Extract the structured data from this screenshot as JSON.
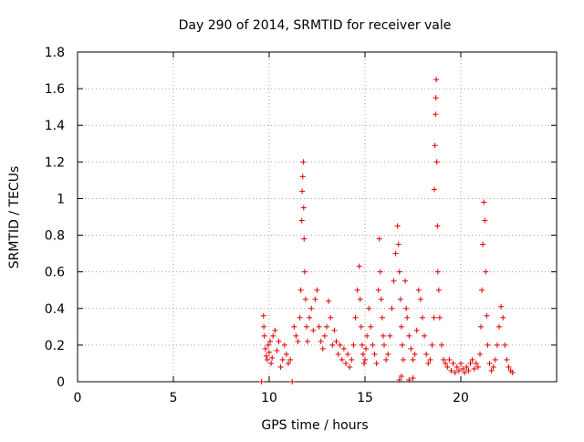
{
  "chart_data": {
    "type": "scatter",
    "title": "Day 290 of 2014, SRMTID for receiver vale",
    "xlabel": "GPS time / hours",
    "ylabel": "SRMTID / TECUs",
    "xlim": [
      0,
      25
    ],
    "ylim": [
      0,
      1.8
    ],
    "xticks": [
      0,
      5,
      10,
      15,
      20
    ],
    "xtick_labels": [
      "0",
      "5",
      "10",
      "15",
      "20"
    ],
    "yticks": [
      0,
      0.2,
      0.4,
      0.6,
      0.8,
      1,
      1.2,
      1.4,
      1.6,
      1.8
    ],
    "ytick_labels": [
      "0",
      "0.2",
      "0.4",
      "0.6",
      "0.8",
      "1",
      "1.2",
      "1.4",
      "1.6",
      "1.8"
    ],
    "grid": true,
    "marker": "+",
    "color": "#e00000",
    "series": [
      {
        "name": "SRMTID",
        "x": [
          9.6,
          11.2,
          9.7,
          9.72,
          9.75,
          9.8,
          9.85,
          9.9,
          9.95,
          10.0,
          10.05,
          10.1,
          10.15,
          10.2,
          10.3,
          10.4,
          10.5,
          10.6,
          10.7,
          10.8,
          10.9,
          11.0,
          11.1,
          11.3,
          11.4,
          11.5,
          11.6,
          11.65,
          11.7,
          11.72,
          11.75,
          11.78,
          11.8,
          11.82,
          11.85,
          11.9,
          11.95,
          12.0,
          12.1,
          12.2,
          12.3,
          12.4,
          12.5,
          12.6,
          12.7,
          12.8,
          12.9,
          13.0,
          13.1,
          13.2,
          13.3,
          13.4,
          13.5,
          13.6,
          13.7,
          13.8,
          13.9,
          14.0,
          14.1,
          14.2,
          14.3,
          14.4,
          14.5,
          14.6,
          14.7,
          14.75,
          14.8,
          14.85,
          14.9,
          14.95,
          15.0,
          15.05,
          15.1,
          15.2,
          15.3,
          15.4,
          15.5,
          15.6,
          15.7,
          15.75,
          15.8,
          15.85,
          15.9,
          15.95,
          16.0,
          16.1,
          16.2,
          16.3,
          16.4,
          16.5,
          16.6,
          16.7,
          16.75,
          16.8,
          16.85,
          16.9,
          16.95,
          17.0,
          17.1,
          17.15,
          17.2,
          17.3,
          17.4,
          17.5,
          17.6,
          17.7,
          17.8,
          17.9,
          18.0,
          18.1,
          18.2,
          18.3,
          18.4,
          18.5,
          18.6,
          18.62,
          18.65,
          18.68,
          18.7,
          18.72,
          18.75,
          18.78,
          18.8,
          18.85,
          18.9,
          19.0,
          19.1,
          19.2,
          19.3,
          19.4,
          19.5,
          19.6,
          19.7,
          19.8,
          19.9,
          20.0,
          20.1,
          20.2,
          20.3,
          20.4,
          20.5,
          20.6,
          20.7,
          20.8,
          20.9,
          21.0,
          21.05,
          21.1,
          21.15,
          21.2,
          21.25,
          21.3,
          21.35,
          21.4,
          21.5,
          21.6,
          21.7,
          21.8,
          21.9,
          22.0,
          22.1,
          22.2,
          22.3,
          22.4,
          22.5,
          22.6,
          22.7,
          16.8,
          16.9,
          17.3,
          17.5
        ],
        "y": [
          0,
          0,
          0.36,
          0.3,
          0.25,
          0.18,
          0.14,
          0.12,
          0.2,
          0.16,
          0.22,
          0.1,
          0.13,
          0.25,
          0.28,
          0.17,
          0.22,
          0.08,
          0.12,
          0.2,
          0.15,
          0.1,
          0.12,
          0.3,
          0.25,
          0.22,
          0.35,
          0.5,
          0.88,
          1.04,
          1.12,
          1.2,
          0.95,
          0.78,
          0.6,
          0.45,
          0.3,
          0.22,
          0.35,
          0.4,
          0.28,
          0.45,
          0.5,
          0.3,
          0.22,
          0.18,
          0.25,
          0.3,
          0.44,
          0.35,
          0.2,
          0.28,
          0.22,
          0.15,
          0.2,
          0.12,
          0.18,
          0.1,
          0.15,
          0.08,
          0.12,
          0.2,
          0.35,
          0.5,
          0.63,
          0.45,
          0.3,
          0.2,
          0.15,
          0.1,
          0.12,
          0.18,
          0.25,
          0.4,
          0.3,
          0.2,
          0.15,
          0.1,
          0.5,
          0.78,
          0.6,
          0.45,
          0.35,
          0.25,
          0.2,
          0.12,
          0.15,
          0.25,
          0.4,
          0.55,
          0.7,
          0.85,
          0.75,
          0.6,
          0.45,
          0.3,
          0.2,
          0.12,
          0.55,
          0.4,
          0.35,
          0.25,
          0.18,
          0.12,
          0.15,
          0.28,
          0.5,
          0.45,
          0.35,
          0.25,
          0.15,
          0.1,
          0.12,
          0.2,
          0.35,
          1.05,
          1.29,
          1.46,
          1.55,
          1.65,
          1.2,
          0.85,
          0.6,
          0.5,
          0.35,
          0.2,
          0.12,
          0.1,
          0.08,
          0.12,
          0.06,
          0.1,
          0.05,
          0.08,
          0.06,
          0.1,
          0.07,
          0.05,
          0.08,
          0.06,
          0.1,
          0.12,
          0.07,
          0.1,
          0.08,
          0.15,
          0.3,
          0.5,
          0.75,
          0.98,
          0.88,
          0.6,
          0.36,
          0.2,
          0.1,
          0.06,
          0.08,
          0.12,
          0.2,
          0.3,
          0.41,
          0.35,
          0.2,
          0.12,
          0.08,
          0.06,
          0.05,
          0.01,
          0.03,
          0.01,
          0.02
        ]
      }
    ]
  }
}
